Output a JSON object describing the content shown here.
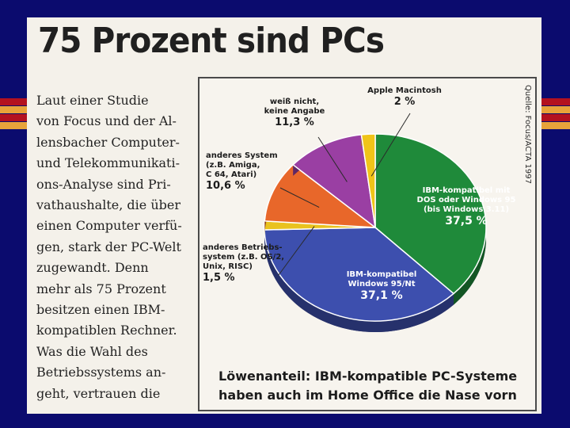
{
  "headline": "75 Prozent sind PCs",
  "article_text": [
    "Laut einer Studie",
    "von Focus und der Al-",
    "lensbacher Computer-",
    "und Telekommunikati-",
    "ons-Analyse sind Pri-",
    "vathaushalte, die über",
    "einen Computer verfü-",
    "gen, stark der PC-Welt",
    "zugewandt. Denn",
    "mehr als 75 Prozent",
    "besitzen einen IBM-",
    "kompatiblen Rechner.",
    "Was die Wahl des",
    "Betriebssystems an-",
    "geht, vertrauen die"
  ],
  "source_note": "Quelle: Focus/ACTA 1997",
  "chart_data": {
    "type": "pie",
    "title": "Löwenanteil: IBM-kompatible PC-Systeme haben auch im Home Office die Nase vorn",
    "unit": "%",
    "slices": [
      {
        "key": "ibm_dos",
        "label_lines": [
          "IBM-kompatibel mit",
          "DOS oder Windows 95",
          "(bis Windows 3.11)"
        ],
        "value": 37.5,
        "value_label": "37,5 %",
        "color": "#1f8a3a"
      },
      {
        "key": "ibm_win95nt",
        "label_lines": [
          "IBM-kompatibel",
          "Windows 95/Nt"
        ],
        "value": 37.1,
        "value_label": "37,1 %",
        "color": "#3d4fae"
      },
      {
        "key": "other_os",
        "label_lines": [
          "anderes Betriebs-",
          "system (z.B. OS/2,",
          "Unix, RISC)"
        ],
        "value": 1.5,
        "value_label": "1,5 %",
        "color": "#e9c21f"
      },
      {
        "key": "other_system",
        "label_lines": [
          "anderes System",
          "(z.B. Amiga,",
          "C 64, Atari)"
        ],
        "value": 10.6,
        "value_label": "10,6 %",
        "color": "#e8672a"
      },
      {
        "key": "unknown",
        "label_lines": [
          "weiß nicht,",
          "keine Angabe"
        ],
        "value": 11.3,
        "value_label": "11,3 %",
        "color": "#9a3fa3"
      },
      {
        "key": "mac",
        "label_lines": [
          "Apple Macintosh"
        ],
        "value": 2.0,
        "value_label": "2 %",
        "color": "#f0c419"
      }
    ]
  }
}
